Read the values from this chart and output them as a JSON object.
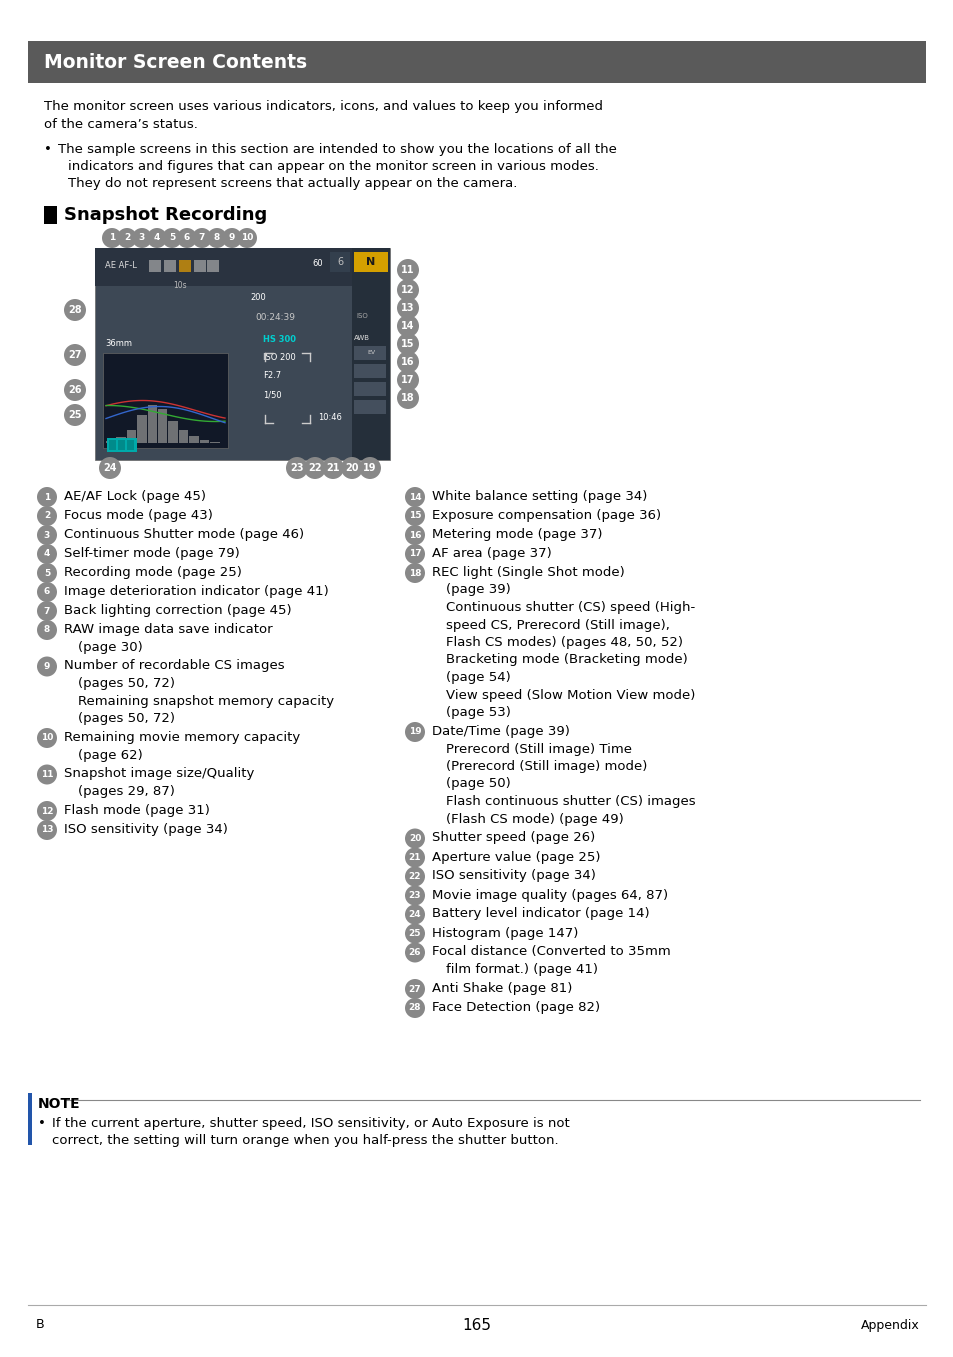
{
  "title": "Monitor Screen Contents",
  "title_bg": "#5a5a5a",
  "title_color": "#ffffff",
  "page_bg": "#ffffff",
  "intro_line1": "The monitor screen uses various indicators, icons, and values to keep you informed",
  "intro_line2": "of the camera’s status.",
  "bullet_text_lines": [
    "The sample screens in this section are intended to show you the locations of all the",
    "indicators and figures that can appear on the monitor screen in various modes.",
    "They do not represent screens that actually appear on the camera."
  ],
  "section_title": "Snapshot Recording",
  "left_items": [
    {
      "num": "1",
      "text": "AE/AF Lock (page 45)",
      "indent_lines": []
    },
    {
      "num": "2",
      "text": "Focus mode (page 43)",
      "indent_lines": []
    },
    {
      "num": "3",
      "text": "Continuous Shutter mode (page 46)",
      "indent_lines": []
    },
    {
      "num": "4",
      "text": "Self-timer mode (page 79)",
      "indent_lines": []
    },
    {
      "num": "5",
      "text": "Recording mode (page 25)",
      "indent_lines": []
    },
    {
      "num": "6",
      "text": "Image deterioration indicator (page 41)",
      "indent_lines": []
    },
    {
      "num": "7",
      "text": "Back lighting correction (page 45)",
      "indent_lines": []
    },
    {
      "num": "8",
      "text": "RAW image data save indicator",
      "indent_lines": [
        "(page 30)"
      ]
    },
    {
      "num": "9",
      "text": "Number of recordable CS images",
      "indent_lines": [
        "(pages 50, 72)",
        "Remaining snapshot memory capacity",
        "(pages 50, 72)"
      ]
    },
    {
      "num": "10",
      "text": "Remaining movie memory capacity",
      "indent_lines": [
        "(page 62)"
      ]
    },
    {
      "num": "11",
      "text": "Snapshot image size/Quality",
      "indent_lines": [
        "(pages 29, 87)"
      ]
    },
    {
      "num": "12",
      "text": "Flash mode (page 31)",
      "indent_lines": []
    },
    {
      "num": "13",
      "text": "ISO sensitivity (page 34)",
      "indent_lines": []
    }
  ],
  "right_items": [
    {
      "num": "14",
      "text": "White balance setting (page 34)",
      "indent_lines": []
    },
    {
      "num": "15",
      "text": "Exposure compensation (page 36)",
      "indent_lines": []
    },
    {
      "num": "16",
      "text": "Metering mode (page 37)",
      "indent_lines": []
    },
    {
      "num": "17",
      "text": "AF area (page 37)",
      "indent_lines": []
    },
    {
      "num": "18",
      "text": "REC light (Single Shot mode)",
      "indent_lines": [
        "(page 39)",
        "Continuous shutter (CS) speed (High-",
        "speed CS, Prerecord (Still image),",
        "Flash CS modes) (pages 48, 50, 52)",
        "Bracketing mode (Bracketing mode)",
        "(page 54)",
        "View speed (Slow Motion View mode)",
        "(page 53)"
      ]
    },
    {
      "num": "19",
      "text": "Date/Time (page 39)",
      "indent_lines": [
        "Prerecord (Still image) Time",
        "(Prerecord (Still image) mode)",
        "(page 50)",
        "Flash continuous shutter (CS) images",
        "(Flash CS mode) (page 49)"
      ]
    },
    {
      "num": "20",
      "text": "Shutter speed (page 26)",
      "indent_lines": []
    },
    {
      "num": "21",
      "text": "Aperture value (page 25)",
      "indent_lines": []
    },
    {
      "num": "22",
      "text": "ISO sensitivity (page 34)",
      "indent_lines": []
    },
    {
      "num": "23",
      "text": "Movie image quality (pages 64, 87)",
      "indent_lines": []
    },
    {
      "num": "24",
      "text": "Battery level indicator (page 14)",
      "indent_lines": []
    },
    {
      "num": "25",
      "text": "Histogram (page 147)",
      "indent_lines": []
    },
    {
      "num": "26",
      "text": "Focal distance (Converted to 35mm",
      "indent_lines": [
        "film format.) (page 41)"
      ]
    },
    {
      "num": "27",
      "text": "Anti Shake (page 81)",
      "indent_lines": []
    },
    {
      "num": "28",
      "text": "Face Detection (page 82)",
      "indent_lines": []
    }
  ],
  "note_text_lines": [
    "If the current aperture, shutter speed, ISO sensitivity, or Auto Exposure is not",
    "correct, the setting will turn orange when you half-press the shutter button."
  ],
  "page_number": "165",
  "footer_left": "B",
  "footer_right": "Appendix",
  "circle_color": "#888888"
}
